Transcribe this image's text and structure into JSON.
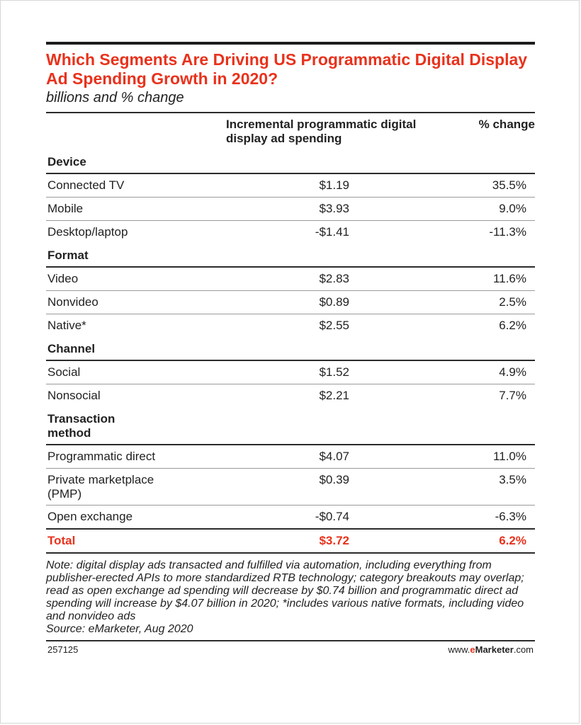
{
  "chart_data": {
    "type": "table",
    "title": "Which Segments Are Driving US Programmatic Digital Display Ad Spending Growth in 2020?",
    "subtitle": "billions and % change",
    "columns": [
      "Incremental programmatic digital display ad spending",
      "% change"
    ],
    "groups": [
      {
        "name": "Device",
        "rows": [
          {
            "label": "Connected TV",
            "spend_text": "$1.19",
            "change_text": "35.5%",
            "spend": 1.19,
            "change": 35.5
          },
          {
            "label": "Mobile",
            "spend_text": "$3.93",
            "change_text": "9.0%",
            "spend": 3.93,
            "change": 9.0
          },
          {
            "label": "Desktop/laptop",
            "spend_text": "-$1.41",
            "change_text": "-11.3%",
            "spend": -1.41,
            "change": -11.3
          }
        ]
      },
      {
        "name": "Format",
        "rows": [
          {
            "label": "Video",
            "spend_text": "$2.83",
            "change_text": "11.6%",
            "spend": 2.83,
            "change": 11.6
          },
          {
            "label": "Nonvideo",
            "spend_text": "$0.89",
            "change_text": "2.5%",
            "spend": 0.89,
            "change": 2.5
          },
          {
            "label": "Native*",
            "spend_text": "$2.55",
            "change_text": "6.2%",
            "spend": 2.55,
            "change": 6.2
          }
        ]
      },
      {
        "name": "Channel",
        "rows": [
          {
            "label": "Social",
            "spend_text": "$1.52",
            "change_text": "4.9%",
            "spend": 1.52,
            "change": 4.9
          },
          {
            "label": "Nonsocial",
            "spend_text": "$2.21",
            "change_text": "7.7%",
            "spend": 2.21,
            "change": 7.7
          }
        ]
      },
      {
        "name": "Transaction method",
        "rows": [
          {
            "label": "Programmatic direct",
            "spend_text": "$4.07",
            "change_text": "11.0%",
            "spend": 4.07,
            "change": 11.0
          },
          {
            "label": "Private marketplace (PMP)",
            "spend_text": "$0.39",
            "change_text": "3.5%",
            "spend": 0.39,
            "change": 3.5
          },
          {
            "label": "Open exchange",
            "spend_text": "-$0.74",
            "change_text": "-6.3%",
            "spend": -0.74,
            "change": -6.3
          }
        ]
      }
    ],
    "total": {
      "label": "Total",
      "spend_text": "$3.72",
      "change_text": "6.2%",
      "spend": 3.72,
      "change": 6.2
    }
  },
  "note": "Note: digital display ads transacted and fulfilled via automation, including everything from publisher-erected APIs to more standardized RTB technology; category breakouts may overlap; read as open exchange ad spending will decrease by $0.74 billion and programmatic direct ad spending will increase by $4.07 billion in 2020; *includes various native formats, including video and nonvideo ads",
  "source": "Source: eMarketer, Aug 2020",
  "chart_id": "257125",
  "brand": {
    "prefix": "www.",
    "e": "e",
    "name": "Marketer",
    "suffix": ".com"
  },
  "colors": {
    "accent": "#e8321c",
    "text": "#222222",
    "rule": "#2b2b2b"
  }
}
